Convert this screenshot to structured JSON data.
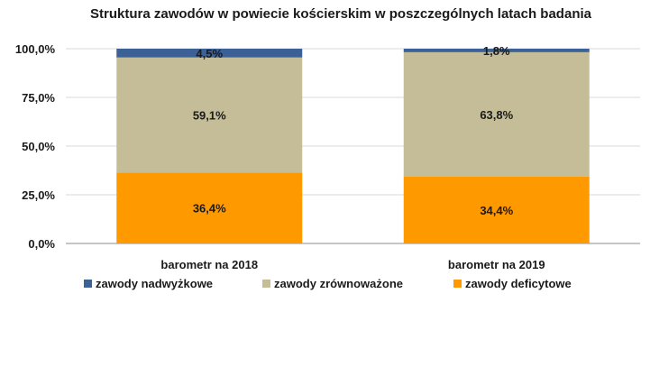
{
  "chart_data": {
    "type": "bar",
    "stacked": true,
    "title": "Struktura zawodów w powiecie kościerskim w poszczególnych latach badania",
    "xlabel": "",
    "ylabel": "",
    "ylim": [
      0,
      100
    ],
    "yticks": [
      "0,0%",
      "25,0%",
      "50,0%",
      "75,0%",
      "100,0%"
    ],
    "grid": true,
    "legend_position": "bottom",
    "categories": [
      "barometr na 2018",
      "barometr na 2019"
    ],
    "series": [
      {
        "name": "zawody deficytowe",
        "color": "#FF9900",
        "values": [
          36.4,
          34.4
        ],
        "labels": [
          "36,4%",
          "34,4%"
        ]
      },
      {
        "name": "zawody zrównoważone",
        "color": "#C4BD97",
        "values": [
          59.1,
          63.8
        ],
        "labels": [
          "59,1%",
          "63,8%"
        ]
      },
      {
        "name": "zawody nadwyżkowe",
        "color": "#3C6196",
        "values": [
          4.5,
          1.8
        ],
        "labels": [
          "4,5%",
          "1,8%"
        ]
      }
    ],
    "legend_order": [
      "zawody nadwyżkowe",
      "zawody zrównoważone",
      "zawody deficytowe"
    ]
  }
}
